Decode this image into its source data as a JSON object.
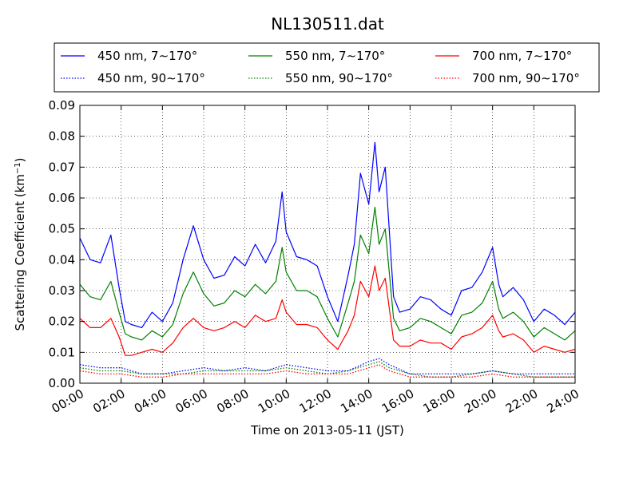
{
  "chart_data": {
    "type": "line",
    "title": "NL130511.dat",
    "xlabel": "Time on 2013-05-11 (JST)",
    "ylabel_main": "Scattering Coefficient (km",
    "ylabel_sup": "−1",
    "ylabel_tail": ")",
    "xlim": [
      0,
      24
    ],
    "ylim": [
      0,
      0.09
    ],
    "x_ticks": [
      "00:00",
      "02:00",
      "04:00",
      "06:00",
      "08:00",
      "10:00",
      "12:00",
      "14:00",
      "16:00",
      "18:00",
      "20:00",
      "22:00",
      "24:00"
    ],
    "y_ticks": [
      "0.00",
      "0.01",
      "0.02",
      "0.03",
      "0.04",
      "0.05",
      "0.06",
      "0.07",
      "0.08",
      "0.09"
    ],
    "grid": true,
    "legend_position": "top",
    "series": [
      {
        "name": "450 nm, 7∼170°",
        "color": "#0000ff",
        "style": "solid",
        "x": [
          0.0,
          0.5,
          1.0,
          1.5,
          1.9,
          2.2,
          2.5,
          3.0,
          3.5,
          4.0,
          4.5,
          5.0,
          5.5,
          6.0,
          6.5,
          7.0,
          7.5,
          8.0,
          8.5,
          9.0,
          9.5,
          9.8,
          10.0,
          10.5,
          11.0,
          11.5,
          12.0,
          12.5,
          13.0,
          13.3,
          13.6,
          14.0,
          14.3,
          14.5,
          14.8,
          15.2,
          15.5,
          16.0,
          16.5,
          17.0,
          17.5,
          18.0,
          18.5,
          19.0,
          19.5,
          20.0,
          20.3,
          20.5,
          21.0,
          21.5,
          22.0,
          22.5,
          23.0,
          23.5,
          24.0
        ],
        "y": [
          0.047,
          0.04,
          0.039,
          0.048,
          0.031,
          0.02,
          0.019,
          0.018,
          0.023,
          0.02,
          0.026,
          0.04,
          0.051,
          0.04,
          0.034,
          0.035,
          0.041,
          0.038,
          0.045,
          0.039,
          0.046,
          0.062,
          0.049,
          0.041,
          0.04,
          0.038,
          0.028,
          0.02,
          0.035,
          0.045,
          0.068,
          0.058,
          0.078,
          0.062,
          0.07,
          0.028,
          0.023,
          0.024,
          0.028,
          0.027,
          0.024,
          0.022,
          0.03,
          0.031,
          0.036,
          0.044,
          0.032,
          0.028,
          0.031,
          0.027,
          0.02,
          0.024,
          0.022,
          0.019,
          0.023
        ]
      },
      {
        "name": "550 nm, 7∼170°",
        "color": "#008000",
        "style": "solid",
        "x": [
          0.0,
          0.5,
          1.0,
          1.5,
          1.9,
          2.2,
          2.5,
          3.0,
          3.5,
          4.0,
          4.5,
          5.0,
          5.5,
          6.0,
          6.5,
          7.0,
          7.5,
          8.0,
          8.5,
          9.0,
          9.5,
          9.8,
          10.0,
          10.5,
          11.0,
          11.5,
          12.0,
          12.5,
          13.0,
          13.3,
          13.6,
          14.0,
          14.3,
          14.5,
          14.8,
          15.2,
          15.5,
          16.0,
          16.5,
          17.0,
          17.5,
          18.0,
          18.5,
          19.0,
          19.5,
          20.0,
          20.3,
          20.5,
          21.0,
          21.5,
          22.0,
          22.5,
          23.0,
          23.5,
          24.0
        ],
        "y": [
          0.032,
          0.028,
          0.027,
          0.033,
          0.023,
          0.016,
          0.015,
          0.014,
          0.017,
          0.015,
          0.019,
          0.029,
          0.036,
          0.029,
          0.025,
          0.026,
          0.03,
          0.028,
          0.032,
          0.029,
          0.033,
          0.044,
          0.036,
          0.03,
          0.03,
          0.028,
          0.021,
          0.015,
          0.026,
          0.033,
          0.048,
          0.042,
          0.057,
          0.045,
          0.05,
          0.021,
          0.017,
          0.018,
          0.021,
          0.02,
          0.018,
          0.016,
          0.022,
          0.023,
          0.026,
          0.033,
          0.024,
          0.021,
          0.023,
          0.02,
          0.015,
          0.018,
          0.016,
          0.014,
          0.017
        ]
      },
      {
        "name": "700 nm, 7∼170°",
        "color": "#ff0000",
        "style": "solid",
        "x": [
          0.0,
          0.5,
          1.0,
          1.5,
          1.9,
          2.2,
          2.5,
          3.0,
          3.5,
          4.0,
          4.5,
          5.0,
          5.5,
          6.0,
          6.5,
          7.0,
          7.5,
          8.0,
          8.5,
          9.0,
          9.5,
          9.8,
          10.0,
          10.5,
          11.0,
          11.5,
          12.0,
          12.5,
          13.0,
          13.3,
          13.6,
          14.0,
          14.3,
          14.5,
          14.8,
          15.2,
          15.5,
          16.0,
          16.5,
          17.0,
          17.5,
          18.0,
          18.5,
          19.0,
          19.5,
          20.0,
          20.3,
          20.5,
          21.0,
          21.5,
          22.0,
          22.5,
          23.0,
          23.5,
          24.0
        ],
        "y": [
          0.021,
          0.018,
          0.018,
          0.021,
          0.015,
          0.009,
          0.009,
          0.01,
          0.011,
          0.01,
          0.013,
          0.018,
          0.021,
          0.018,
          0.017,
          0.018,
          0.02,
          0.018,
          0.022,
          0.02,
          0.021,
          0.027,
          0.023,
          0.019,
          0.019,
          0.018,
          0.014,
          0.011,
          0.017,
          0.022,
          0.033,
          0.028,
          0.038,
          0.03,
          0.034,
          0.014,
          0.012,
          0.012,
          0.014,
          0.013,
          0.013,
          0.011,
          0.015,
          0.016,
          0.018,
          0.022,
          0.017,
          0.015,
          0.016,
          0.014,
          0.01,
          0.012,
          0.011,
          0.01,
          0.011
        ]
      },
      {
        "name": "450 nm, 90∼170°",
        "color": "#0000ff",
        "style": "dotted",
        "x": [
          0,
          1,
          2,
          3,
          4,
          5,
          6,
          7,
          8,
          9,
          10,
          11,
          12,
          13,
          14,
          14.5,
          15,
          16,
          17,
          18,
          19,
          20,
          21,
          22,
          23,
          24
        ],
        "y": [
          0.006,
          0.005,
          0.005,
          0.003,
          0.003,
          0.004,
          0.005,
          0.004,
          0.005,
          0.004,
          0.006,
          0.005,
          0.004,
          0.004,
          0.007,
          0.008,
          0.006,
          0.003,
          0.003,
          0.003,
          0.003,
          0.004,
          0.003,
          0.003,
          0.003,
          0.003
        ]
      },
      {
        "name": "550 nm, 90∼170°",
        "color": "#008000",
        "style": "dotted",
        "x": [
          0,
          1,
          2,
          3,
          4,
          5,
          6,
          7,
          8,
          9,
          10,
          11,
          12,
          13,
          14,
          14.5,
          15,
          16,
          17,
          18,
          19,
          20,
          21,
          22,
          23,
          24
        ],
        "y": [
          0.005,
          0.004,
          0.004,
          0.003,
          0.003,
          0.003,
          0.004,
          0.004,
          0.004,
          0.004,
          0.005,
          0.004,
          0.003,
          0.004,
          0.006,
          0.007,
          0.005,
          0.003,
          0.002,
          0.002,
          0.003,
          0.004,
          0.003,
          0.002,
          0.002,
          0.002
        ]
      },
      {
        "name": "700 nm, 90∼170°",
        "color": "#ff0000",
        "style": "dotted",
        "x": [
          0,
          1,
          2,
          3,
          4,
          5,
          6,
          7,
          8,
          9,
          10,
          11,
          12,
          13,
          14,
          14.5,
          15,
          16,
          17,
          18,
          19,
          20,
          21,
          22,
          23,
          24
        ],
        "y": [
          0.004,
          0.003,
          0.003,
          0.002,
          0.002,
          0.003,
          0.003,
          0.003,
          0.003,
          0.003,
          0.004,
          0.003,
          0.003,
          0.003,
          0.005,
          0.006,
          0.004,
          0.002,
          0.002,
          0.002,
          0.002,
          0.003,
          0.002,
          0.002,
          0.002,
          0.002
        ]
      }
    ]
  }
}
